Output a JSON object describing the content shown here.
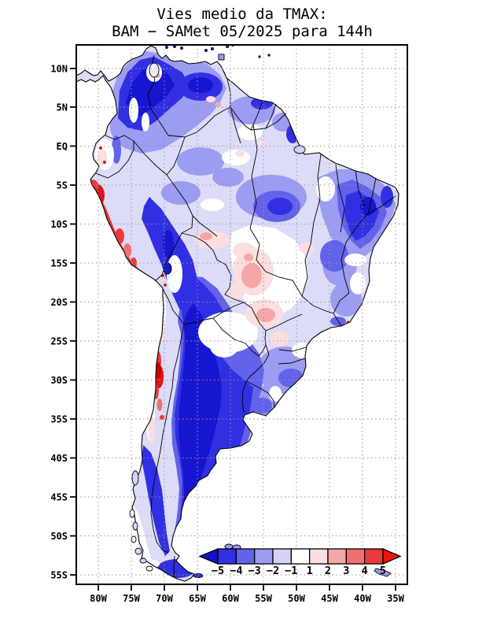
{
  "title": {
    "line1": "Vies medio da TMAX:",
    "line2": "BAM − SAMet 05/2025  para 144h"
  },
  "axes": {
    "lat_ticks": [
      "10N",
      "5N",
      "EQ",
      "5S",
      "10S",
      "15S",
      "20S",
      "25S",
      "30S",
      "35S",
      "40S",
      "45S",
      "50S",
      "55S"
    ],
    "lon_ticks": [
      "80W",
      "75W",
      "70W",
      "65W",
      "60W",
      "55W",
      "50W",
      "45W",
      "40W",
      "35W"
    ]
  },
  "legend": {
    "values": [
      "−5",
      "−4",
      "−3",
      "−2",
      "−1",
      "1",
      "2",
      "3",
      "4",
      "5"
    ],
    "box_colors": [
      "#3030e2",
      "#6262ea",
      "#9c9cf2",
      "#d4d4f9",
      "#ffffff",
      "#fbdede",
      "#f6a6a6",
      "#f07070",
      "#ea3a3a"
    ],
    "left_arrow_color": "#1212cc",
    "right_arrow_color": "#f01212"
  },
  "colors": {
    "ocean": "#ffffff",
    "land_base": "#dcdcf8",
    "grid": "#999999",
    "coast": "#000000",
    "deep_negative": "#1616d0",
    "strong_negative": "#3030e2",
    "strong_positive": "#e01212"
  }
}
